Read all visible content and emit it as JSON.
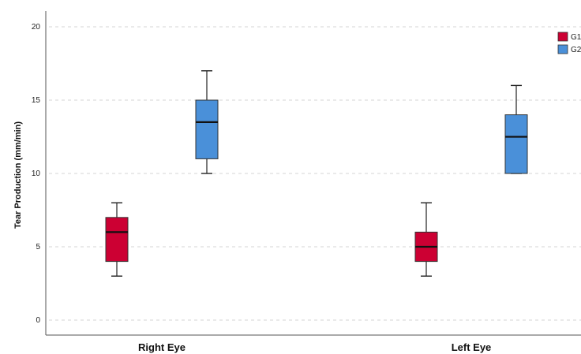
{
  "chart_data": {
    "type": "boxplot",
    "ylabel": "Tear Production (mm/min)",
    "xlabel": "",
    "categories": [
      "Right Eye",
      "Left Eye"
    ],
    "ylim": [
      0,
      20
    ],
    "yticks": [
      0,
      5,
      10,
      15,
      20
    ],
    "grid": true,
    "legend_position": "top-right",
    "series": [
      {
        "name": "G1",
        "color": "#cc0033",
        "boxes": [
          {
            "category": "Right Eye",
            "min": 3,
            "q1": 4,
            "median": 6,
            "q3": 7,
            "max": 8
          },
          {
            "category": "Left Eye",
            "min": 3,
            "q1": 4,
            "median": 5,
            "q3": 6,
            "max": 8
          }
        ]
      },
      {
        "name": "G2",
        "color": "#4a90d9",
        "boxes": [
          {
            "category": "Right Eye",
            "min": 10,
            "q1": 11,
            "median": 13.5,
            "q3": 15,
            "max": 17
          },
          {
            "category": "Left Eye",
            "min": 10,
            "q1": 10,
            "median": 12.5,
            "q3": 14,
            "max": 16
          }
        ]
      }
    ]
  }
}
